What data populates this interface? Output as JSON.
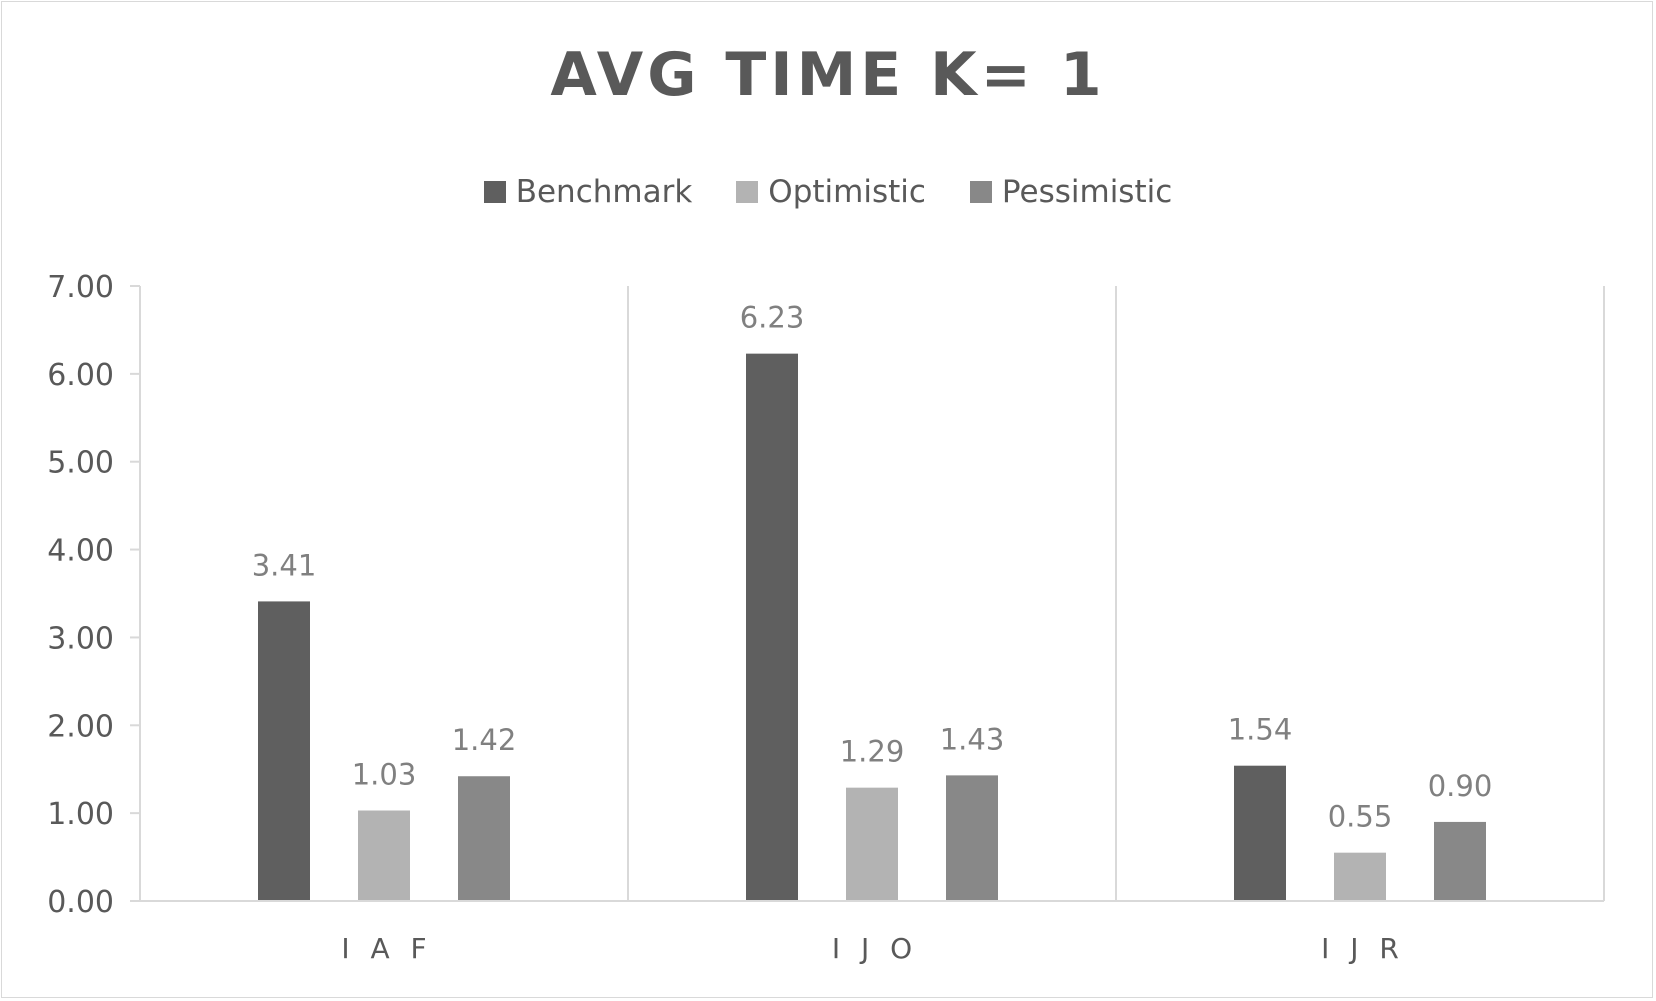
{
  "chart_data": {
    "type": "bar",
    "title": "AVG TIME K= 1",
    "categories": [
      "IAF",
      "IJO",
      "IJR"
    ],
    "series": [
      {
        "name": "Benchmark",
        "values": [
          3.41,
          6.23,
          1.54
        ],
        "color": "#5f5f5f"
      },
      {
        "name": "Optimistic",
        "values": [
          1.03,
          1.29,
          0.55
        ],
        "color": "#b3b3b3"
      },
      {
        "name": "Pessimistic",
        "values": [
          1.42,
          1.43,
          0.9
        ],
        "color": "#888888"
      }
    ],
    "ylim": [
      0,
      7
    ],
    "yticks": [
      "0.00",
      "1.00",
      "2.00",
      "3.00",
      "4.00",
      "5.00",
      "6.00",
      "7.00"
    ],
    "data_labels": [
      [
        "3.41",
        "6.23",
        "1.54"
      ],
      [
        "1.03",
        "1.29",
        "0.55"
      ],
      [
        "1.42",
        "1.43",
        "0.90"
      ]
    ],
    "legend_position": "top",
    "gridlines": "vertical category separators",
    "axis_color": "#d9d9d9"
  }
}
